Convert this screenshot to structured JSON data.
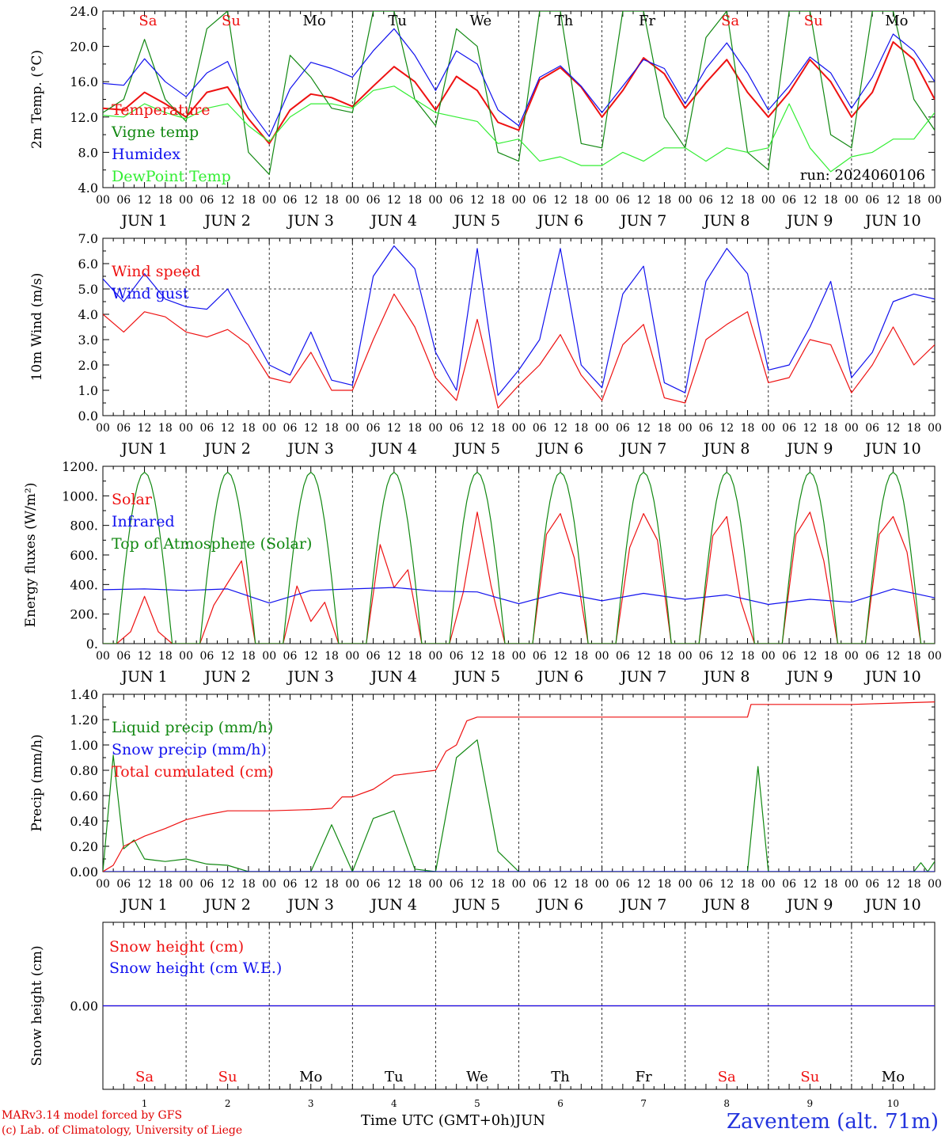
{
  "run_label": "run: 2024060106",
  "footer": {
    "model": "MARv3.14 model forced by GFS",
    "copyright": "(c) Lab. of Climatology, University of Liege",
    "xlabel": "Time UTC (GMT+0h)",
    "month": "JUN",
    "station": "Zaventem (alt. 71m)"
  },
  "days": {
    "names": [
      "Sa",
      "Su",
      "Mo",
      "Tu",
      "We",
      "Th",
      "Fr",
      "Sa",
      "Su",
      "Mo"
    ],
    "weekend": [
      true,
      true,
      false,
      false,
      false,
      false,
      false,
      true,
      true,
      false
    ],
    "numbers": [
      "1",
      "2",
      "3",
      "4",
      "5",
      "6",
      "7",
      "8",
      "9",
      "10"
    ],
    "date_labels": [
      "JUN  1",
      "JUN  2",
      "JUN  3",
      "JUN  4",
      "JUN  5",
      "JUN  6",
      "JUN  7",
      "JUN  8",
      "JUN  9",
      "JUN 10"
    ],
    "hour_ticks": [
      "00",
      "06",
      "12",
      "18"
    ],
    "last_tick": "00"
  },
  "colors": {
    "red": "#ee1111",
    "green": "#118811",
    "blue": "#1111ee",
    "lightgreen": "#33ee33",
    "purple": "#7722aa"
  },
  "chart_data": [
    {
      "type": "line",
      "ylabel": "2m Temp. (°C)",
      "ylim": [
        4.0,
        24.0
      ],
      "yticks": [
        "4.0",
        "8.0",
        "12.0",
        "16.0",
        "20.0",
        "24.0"
      ],
      "x_unit": "hours since JUN 1 00 UTC",
      "series": [
        {
          "name": "Temperature",
          "color": "red",
          "x": [
            0,
            6,
            12,
            18,
            24,
            30,
            36,
            42,
            48,
            54,
            60,
            66,
            72,
            78,
            84,
            90,
            96,
            102,
            108,
            114,
            120,
            126,
            132,
            138,
            144,
            150,
            156,
            162,
            168,
            174,
            180,
            186,
            192,
            198,
            204,
            210,
            216,
            222,
            228,
            234,
            240
          ],
          "y": [
            13.0,
            12.8,
            14.8,
            13.5,
            12.0,
            14.8,
            15.4,
            11.8,
            9.0,
            12.8,
            14.6,
            14.2,
            13.2,
            15.5,
            17.7,
            16.0,
            12.8,
            16.6,
            15.0,
            11.4,
            10.5,
            16.2,
            17.6,
            15.4,
            12.0,
            15.0,
            18.7,
            16.9,
            13.0,
            15.9,
            18.5,
            14.8,
            12.0,
            14.8,
            18.5,
            16.0,
            12.0,
            14.8,
            20.5,
            18.5,
            14.0
          ]
        },
        {
          "name": "Vigne temp",
          "color": "green",
          "x": [
            0,
            6,
            12,
            18,
            24,
            30,
            36,
            42,
            48,
            54,
            60,
            66,
            72,
            78,
            84,
            90,
            96,
            102,
            108,
            114,
            120,
            126,
            132,
            138,
            144,
            150,
            156,
            162,
            168,
            174,
            180,
            186,
            192,
            198,
            204,
            210,
            216,
            222,
            228,
            234,
            240
          ],
          "y": [
            12.5,
            14.0,
            20.8,
            14.0,
            11.5,
            22.0,
            24.0,
            8.0,
            5.5,
            19.0,
            16.5,
            13.0,
            12.5,
            24.0,
            24.0,
            14.0,
            11.0,
            22.0,
            20.0,
            8.0,
            7.0,
            24.0,
            24.0,
            9.0,
            8.5,
            24.0,
            24.0,
            12.0,
            8.5,
            21.0,
            24.0,
            8.0,
            6.0,
            24.0,
            24.0,
            10.0,
            8.5,
            24.0,
            24.0,
            14.0,
            10.5
          ]
        },
        {
          "name": "Humidex",
          "color": "blue",
          "x": [
            0,
            6,
            12,
            18,
            24,
            30,
            36,
            42,
            48,
            54,
            60,
            66,
            72,
            78,
            84,
            90,
            96,
            102,
            108,
            114,
            120,
            126,
            132,
            138,
            144,
            150,
            156,
            162,
            168,
            174,
            180,
            186,
            192,
            198,
            204,
            210,
            216,
            222,
            228,
            234,
            240
          ],
          "y": [
            15.8,
            15.6,
            18.6,
            16.0,
            14.3,
            17.0,
            18.3,
            13.0,
            9.8,
            15.2,
            18.2,
            17.5,
            16.5,
            19.5,
            22.0,
            19.0,
            15.0,
            19.5,
            18.0,
            12.8,
            11.0,
            16.5,
            17.8,
            15.5,
            12.5,
            15.5,
            18.5,
            17.5,
            13.5,
            17.5,
            20.4,
            17.0,
            12.8,
            15.5,
            18.8,
            17.0,
            13.0,
            16.5,
            21.4,
            19.5,
            16.0
          ]
        },
        {
          "name": "DewPoint Temp",
          "color": "lightgreen",
          "x": [
            0,
            6,
            12,
            18,
            24,
            30,
            36,
            42,
            48,
            54,
            60,
            66,
            72,
            78,
            84,
            90,
            96,
            102,
            108,
            114,
            120,
            126,
            132,
            138,
            144,
            150,
            156,
            162,
            168,
            174,
            180,
            186,
            192,
            198,
            204,
            210,
            216,
            222,
            228,
            234,
            240
          ],
          "y": [
            12.2,
            12.0,
            13.5,
            12.5,
            11.8,
            13.0,
            13.5,
            11.0,
            9.2,
            12.0,
            13.5,
            13.5,
            13.0,
            15.0,
            15.5,
            14.0,
            12.5,
            12.0,
            11.5,
            9.0,
            9.5,
            7.0,
            7.5,
            6.5,
            6.5,
            8.0,
            7.0,
            8.5,
            8.5,
            7.0,
            8.5,
            8.0,
            8.5,
            13.5,
            8.5,
            5.8,
            7.5,
            8.0,
            9.5,
            9.5,
            12.5
          ]
        }
      ]
    },
    {
      "type": "line",
      "ylabel": "10m Wind (m/s)",
      "ylim": [
        0.0,
        7.0
      ],
      "yticks": [
        "0.0",
        "1.0",
        "2.0",
        "3.0",
        "4.0",
        "5.0",
        "6.0",
        "7.0"
      ],
      "reference_line": 5.0,
      "series": [
        {
          "name": "Wind speed",
          "color": "red",
          "x": [
            0,
            6,
            12,
            18,
            24,
            30,
            36,
            42,
            48,
            54,
            60,
            66,
            72,
            78,
            84,
            90,
            96,
            102,
            108,
            114,
            120,
            126,
            132,
            138,
            144,
            150,
            156,
            162,
            168,
            174,
            180,
            186,
            192,
            198,
            204,
            210,
            216,
            222,
            228,
            234,
            240
          ],
          "y": [
            4.0,
            3.3,
            4.1,
            3.9,
            3.3,
            3.1,
            3.4,
            2.8,
            1.5,
            1.3,
            2.5,
            1.0,
            1.0,
            3.0,
            4.8,
            3.5,
            1.5,
            0.6,
            3.8,
            0.3,
            1.2,
            2.0,
            3.2,
            1.6,
            0.6,
            2.8,
            3.6,
            0.7,
            0.5,
            3.0,
            3.6,
            4.1,
            1.3,
            1.5,
            3.0,
            2.8,
            0.9,
            2.0,
            3.5,
            2.0,
            2.8
          ]
        },
        {
          "name": "Wind gust",
          "color": "blue",
          "x": [
            0,
            6,
            12,
            18,
            24,
            30,
            36,
            42,
            48,
            54,
            60,
            66,
            72,
            78,
            84,
            90,
            96,
            102,
            108,
            114,
            120,
            126,
            132,
            138,
            144,
            150,
            156,
            162,
            168,
            174,
            180,
            186,
            192,
            198,
            204,
            210,
            216,
            222,
            228,
            234,
            240
          ],
          "y": [
            5.4,
            4.5,
            5.6,
            4.6,
            4.3,
            4.2,
            5.0,
            3.5,
            2.0,
            1.6,
            3.3,
            1.4,
            1.2,
            5.5,
            6.7,
            5.8,
            2.5,
            1.0,
            6.6,
            0.8,
            1.8,
            3.0,
            6.6,
            2.0,
            1.1,
            4.8,
            5.9,
            1.3,
            0.9,
            5.3,
            6.6,
            5.6,
            1.8,
            2.0,
            3.5,
            5.3,
            1.5,
            2.5,
            4.5,
            4.8,
            4.6
          ]
        }
      ]
    },
    {
      "type": "line",
      "ylabel": "Energy fluxes (W/m²)",
      "ylim": [
        0,
        1200
      ],
      "yticks": [
        "0.",
        "200.",
        "400.",
        "600.",
        "800.",
        "1000.",
        "1200."
      ],
      "series": [
        {
          "name": "Solar",
          "color": "red",
          "x": [
            0,
            4,
            8,
            12,
            16,
            20,
            24,
            28,
            32,
            36,
            40,
            44,
            48,
            52,
            56,
            60,
            64,
            68,
            72,
            76,
            80,
            84,
            88,
            92,
            96,
            100,
            104,
            108,
            112,
            116,
            120,
            124,
            128,
            132,
            136,
            140,
            144,
            148,
            152,
            156,
            160,
            164,
            168,
            172,
            176,
            180,
            184,
            188,
            192,
            196,
            200,
            204,
            208,
            212,
            216,
            220,
            224,
            228,
            232,
            236,
            240
          ],
          "y": [
            0,
            0,
            80,
            320,
            80,
            0,
            0,
            0,
            260,
            410,
            560,
            0,
            0,
            0,
            390,
            150,
            280,
            0,
            0,
            0,
            670,
            380,
            500,
            0,
            0,
            0,
            350,
            890,
            390,
            0,
            0,
            0,
            740,
            880,
            580,
            0,
            0,
            0,
            650,
            880,
            700,
            0,
            0,
            0,
            730,
            860,
            290,
            0,
            0,
            0,
            740,
            890,
            560,
            0,
            0,
            0,
            740,
            860,
            620,
            0,
            0
          ]
        },
        {
          "name": "Infrared",
          "color": "blue",
          "x": [
            0,
            12,
            24,
            36,
            48,
            60,
            72,
            84,
            96,
            108,
            120,
            132,
            144,
            156,
            168,
            180,
            192,
            204,
            216,
            228,
            240
          ],
          "y": [
            365,
            370,
            360,
            370,
            275,
            360,
            370,
            380,
            355,
            350,
            270,
            345,
            290,
            340,
            300,
            330,
            265,
            300,
            280,
            370,
            310
          ]
        },
        {
          "name": "Top of Atmosphere (Solar)",
          "color": "green",
          "peaks": 1160,
          "sunrise_h": 4,
          "sunset_h": 20,
          "x": [
            0,
            4,
            8,
            12,
            16,
            20,
            24
          ],
          "y": [
            0,
            0,
            580,
            1160,
            580,
            0,
            0
          ]
        }
      ]
    },
    {
      "type": "line",
      "ylabel": "Precip (mm/h)",
      "ylim": [
        0.0,
        1.4
      ],
      "yticks": [
        "0.00",
        "0.20",
        "0.40",
        "0.60",
        "0.80",
        "1.00",
        "1.20",
        "1.40"
      ],
      "series": [
        {
          "name": "Liquid precip (mm/h)",
          "color": "green",
          "x": [
            0,
            3,
            6,
            9,
            12,
            15,
            18,
            24,
            30,
            36,
            42,
            48,
            60,
            66,
            72,
            78,
            84,
            90,
            96,
            102,
            108,
            114,
            120,
            126,
            132,
            144,
            168,
            186,
            189,
            192,
            210,
            234,
            236,
            238,
            240
          ],
          "y": [
            0.0,
            0.92,
            0.18,
            0.25,
            0.1,
            0.09,
            0.08,
            0.1,
            0.06,
            0.05,
            0.0,
            0.0,
            0.0,
            0.37,
            0.0,
            0.42,
            0.48,
            0.02,
            0.0,
            0.9,
            1.04,
            0.16,
            0.0,
            0.0,
            0.0,
            0.0,
            0.0,
            0.0,
            0.83,
            0.0,
            0.0,
            0.0,
            0.07,
            0.0,
            0.08
          ]
        },
        {
          "name": "Snow precip (mm/h)",
          "color": "blue",
          "x": [
            0,
            240
          ],
          "y": [
            0.0,
            0.0
          ]
        },
        {
          "name": "Total cumulated (cm)",
          "color": "red",
          "x": [
            0,
            3,
            6,
            12,
            18,
            24,
            30,
            36,
            48,
            60,
            66,
            69,
            72,
            78,
            84,
            90,
            96,
            99,
            102,
            105,
            108,
            120,
            168,
            180,
            186,
            187,
            192,
            216,
            240
          ],
          "y": [
            0.0,
            0.05,
            0.2,
            0.28,
            0.34,
            0.41,
            0.45,
            0.48,
            0.48,
            0.49,
            0.5,
            0.59,
            0.59,
            0.65,
            0.76,
            0.78,
            0.8,
            0.95,
            1.0,
            1.19,
            1.22,
            1.22,
            1.22,
            1.22,
            1.22,
            1.32,
            1.32,
            1.32,
            1.34
          ]
        }
      ]
    },
    {
      "type": "line",
      "ylabel": "Snow height (cm)",
      "ylim": [
        -1.0,
        1.0
      ],
      "yticks": [
        "0.00"
      ],
      "series": [
        {
          "name": "Snow height (cm)",
          "color": "red",
          "x": [
            0,
            240
          ],
          "y": [
            0.0,
            0.0
          ]
        },
        {
          "name": "Snow height (cm W.E.)",
          "color": "blue",
          "x": [
            0,
            240
          ],
          "y": [
            0.0,
            0.0
          ]
        }
      ]
    }
  ]
}
